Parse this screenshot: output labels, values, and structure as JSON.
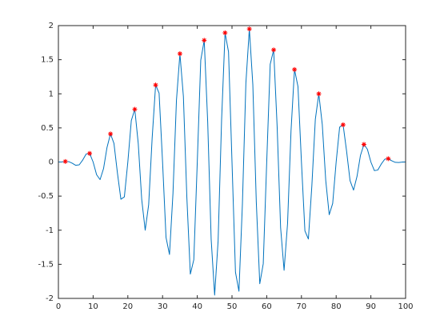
{
  "chart_data": {
    "type": "line",
    "xlim": [
      0,
      100
    ],
    "xticks": [
      0,
      10,
      20,
      30,
      40,
      50,
      60,
      70,
      80,
      90,
      100
    ],
    "ylim": [
      -2,
      2
    ],
    "yticks": [
      -2,
      -1.5,
      -1,
      -0.5,
      0,
      0.5,
      1,
      1.5,
      2
    ],
    "series": [
      {
        "color": "#0072bd",
        "x": [
          0,
          1,
          2,
          3,
          4,
          5,
          6,
          7,
          8,
          9,
          10,
          11,
          12,
          13,
          14,
          15,
          16,
          17,
          18,
          19,
          20,
          21,
          22,
          23,
          24,
          25,
          26,
          27,
          28,
          29,
          30,
          31,
          32,
          33,
          34,
          35,
          36,
          37,
          38,
          39,
          40,
          41,
          42,
          43,
          44,
          45,
          46,
          47,
          48,
          49,
          50,
          51,
          52,
          53,
          54,
          55,
          56,
          57,
          58,
          59,
          60,
          61,
          62,
          63,
          64,
          65,
          66,
          67,
          68,
          69,
          70,
          71,
          72,
          73,
          74,
          75,
          76,
          77,
          78,
          79,
          80,
          81,
          82,
          83,
          84,
          85,
          86,
          87,
          88,
          89,
          90,
          91,
          92,
          93,
          94,
          95,
          96,
          97,
          98,
          99,
          100
        ],
        "values": [
          0,
          0.002,
          0.008,
          0.005,
          -0.018,
          -0.049,
          -0.041,
          0.029,
          0.118,
          0.126,
          0,
          -0.186,
          -0.258,
          -0.097,
          0.213,
          0.412,
          0.273,
          -0.16,
          -0.546,
          -0.511,
          0,
          0.608,
          0.773,
          0.27,
          -0.551,
          -1,
          -0.625,
          0.348,
          1.129,
          1.01,
          0,
          -1.107,
          -1.356,
          -0.458,
          0.903,
          1.588,
          0.962,
          -0.521,
          -1.644,
          -1.432,
          0,
          1.492,
          1.785,
          0.589,
          -1.134,
          -1.951,
          -1.157,
          0.613,
          1.895,
          1.616,
          0,
          -1.616,
          -1.895,
          -0.613,
          1.157,
          1.951,
          1.134,
          -0.589,
          -1.785,
          -1.492,
          0,
          1.432,
          1.644,
          0.521,
          -0.962,
          -1.588,
          -0.903,
          0.458,
          1.356,
          1.107,
          0,
          -1.01,
          -1.129,
          -0.348,
          0.625,
          1,
          0.551,
          -0.27,
          -0.773,
          -0.608,
          0,
          0.511,
          0.546,
          0.16,
          -0.273,
          -0.412,
          -0.213,
          0.097,
          0.258,
          0.186,
          0,
          -0.126,
          -0.118,
          -0.029,
          0.041,
          0.049,
          0.018,
          -0.005,
          -0.008,
          -0.002,
          0
        ]
      },
      {
        "color": "#ff0000",
        "marker": "*",
        "x": [
          2,
          9,
          15,
          22,
          28,
          35,
          42,
          48,
          55,
          62,
          68,
          75,
          82,
          88,
          95
        ],
        "values": [
          0.008,
          0.126,
          0.412,
          0.773,
          1.129,
          1.588,
          1.785,
          1.895,
          1.951,
          1.644,
          1.356,
          1,
          0.546,
          0.258,
          0.049
        ]
      }
    ]
  }
}
